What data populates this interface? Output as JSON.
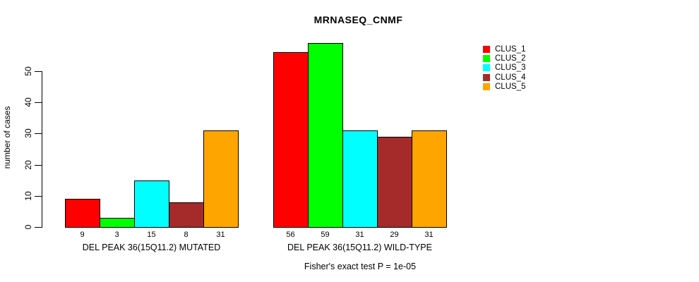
{
  "chart_data": {
    "type": "bar",
    "title": "MRNASEQ_CNMF",
    "xlabel": "",
    "ylabel": "number of cases",
    "categories": [
      "DEL PEAK 36(15Q11.2) MUTATED",
      "DEL PEAK 36(15Q11.2) WILD-TYPE"
    ],
    "series": [
      {
        "name": "CLUS_1",
        "color": "#ff0000",
        "values": [
          9,
          56
        ]
      },
      {
        "name": "CLUS_2",
        "color": "#00ff00",
        "values": [
          3,
          59
        ]
      },
      {
        "name": "CLUS_3",
        "color": "#00ffff",
        "values": [
          15,
          31
        ]
      },
      {
        "name": "CLUS_4",
        "color": "#a52a2a",
        "values": [
          8,
          29
        ]
      },
      {
        "name": "CLUS_5",
        "color": "#ffa500",
        "values": [
          31,
          31
        ]
      }
    ],
    "bar_value_labels": [
      [
        9,
        3,
        15,
        8,
        31
      ],
      [
        56,
        59,
        31,
        29,
        31
      ]
    ],
    "yticks": [
      0,
      10,
      20,
      30,
      40,
      50
    ],
    "ylim": [
      0,
      59
    ],
    "grid": false,
    "legend_position": "right",
    "legend_entries": [
      "CLUS_1",
      "CLUS_2",
      "CLUS_3",
      "CLUS_4",
      "CLUS_5"
    ],
    "annotation": "Fisher's exact test P = 1e-05",
    "background_color": "#ffffff",
    "bar_border_color": "#000000",
    "axis_color": "#000000"
  }
}
